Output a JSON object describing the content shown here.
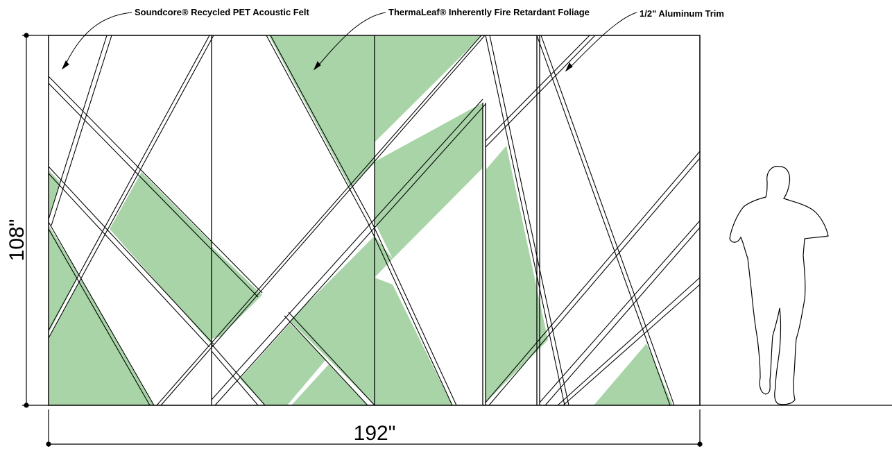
{
  "callouts": {
    "felt": "Soundcore® Recycled PET Acoustic Felt",
    "foliage": "ThermaLeaf® Inherently Fire Retardant Foliage",
    "trim": "1/2\" Aluminum Trim"
  },
  "dimensions": {
    "width": "192\"",
    "height": "108\""
  },
  "colors": {
    "foliage": "#a8d4a8",
    "felt": "#ffffff",
    "trim": "#000000"
  }
}
